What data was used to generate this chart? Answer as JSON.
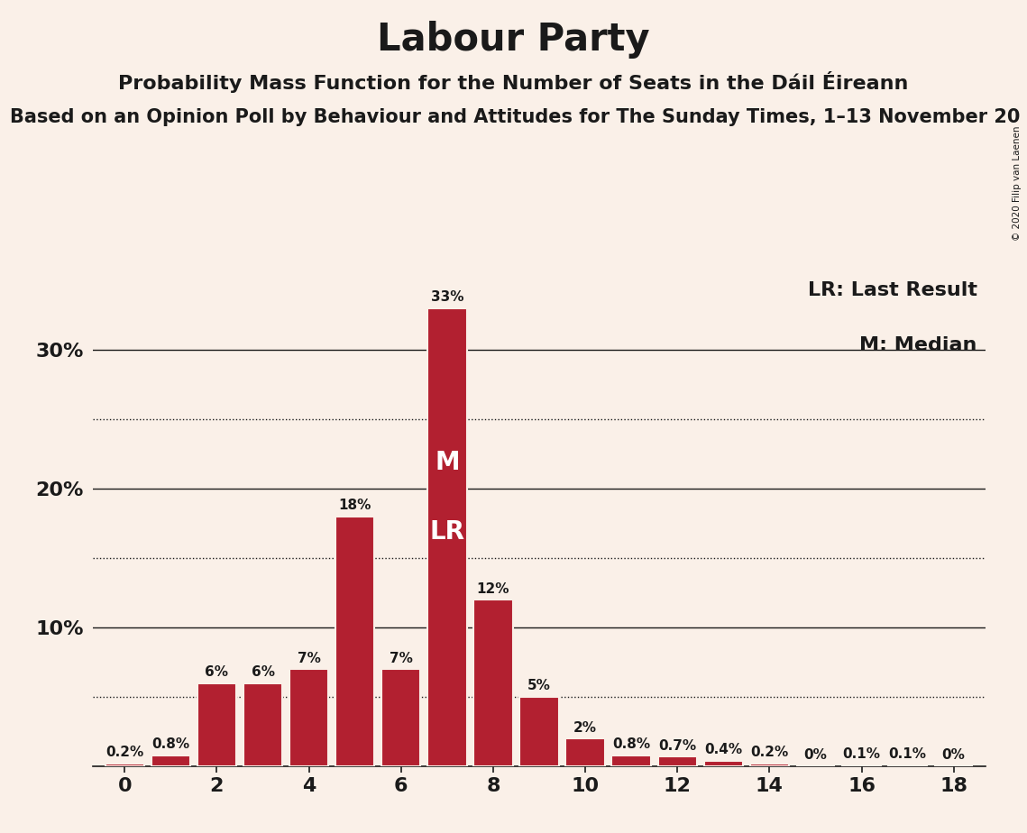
{
  "title": "Labour Party",
  "subtitle": "Probability Mass Function for the Number of Seats in the Dáil Éireann",
  "subtitle2": "Based on an Opinion Poll by Behaviour and Attitudes for The Sunday Times, 1–13 November 20",
  "copyright": "© 2020 Filip van Laenen",
  "background_color": "#FAF0E8",
  "bar_color": "#B22030",
  "bar_edge_color": "#FAF0E8",
  "seats": [
    0,
    1,
    2,
    3,
    4,
    5,
    6,
    7,
    8,
    9,
    10,
    11,
    12,
    13,
    14,
    15,
    16,
    17,
    18
  ],
  "probabilities": [
    0.2,
    0.8,
    6.0,
    6.0,
    7.0,
    18.0,
    7.0,
    33.0,
    12.0,
    5.0,
    2.0,
    0.8,
    0.7,
    0.4,
    0.2,
    0.0,
    0.1,
    0.1,
    0.0
  ],
  "labels": [
    "0.2%",
    "0.8%",
    "6%",
    "6%",
    "7%",
    "18%",
    "7%",
    "33%",
    "12%",
    "5%",
    "2%",
    "0.8%",
    "0.7%",
    "0.4%",
    "0.2%",
    "0%",
    "0.1%",
    "0.1%",
    "0%"
  ],
  "median_seat": 7,
  "lr_seat": 7,
  "legend_lr": "LR: Last Result",
  "legend_m": "M: Median",
  "ylim": [
    0,
    36
  ],
  "dotted_yticks": [
    5,
    15,
    25
  ],
  "solid_yticks": [
    10,
    20,
    30
  ],
  "xticks": [
    0,
    2,
    4,
    6,
    8,
    10,
    12,
    14,
    16,
    18
  ],
  "title_fontsize": 30,
  "subtitle_fontsize": 16,
  "subtitle2_fontsize": 15,
  "label_fontsize": 11,
  "axis_fontsize": 16,
  "legend_fontsize": 16,
  "ml_fontsize": 20
}
